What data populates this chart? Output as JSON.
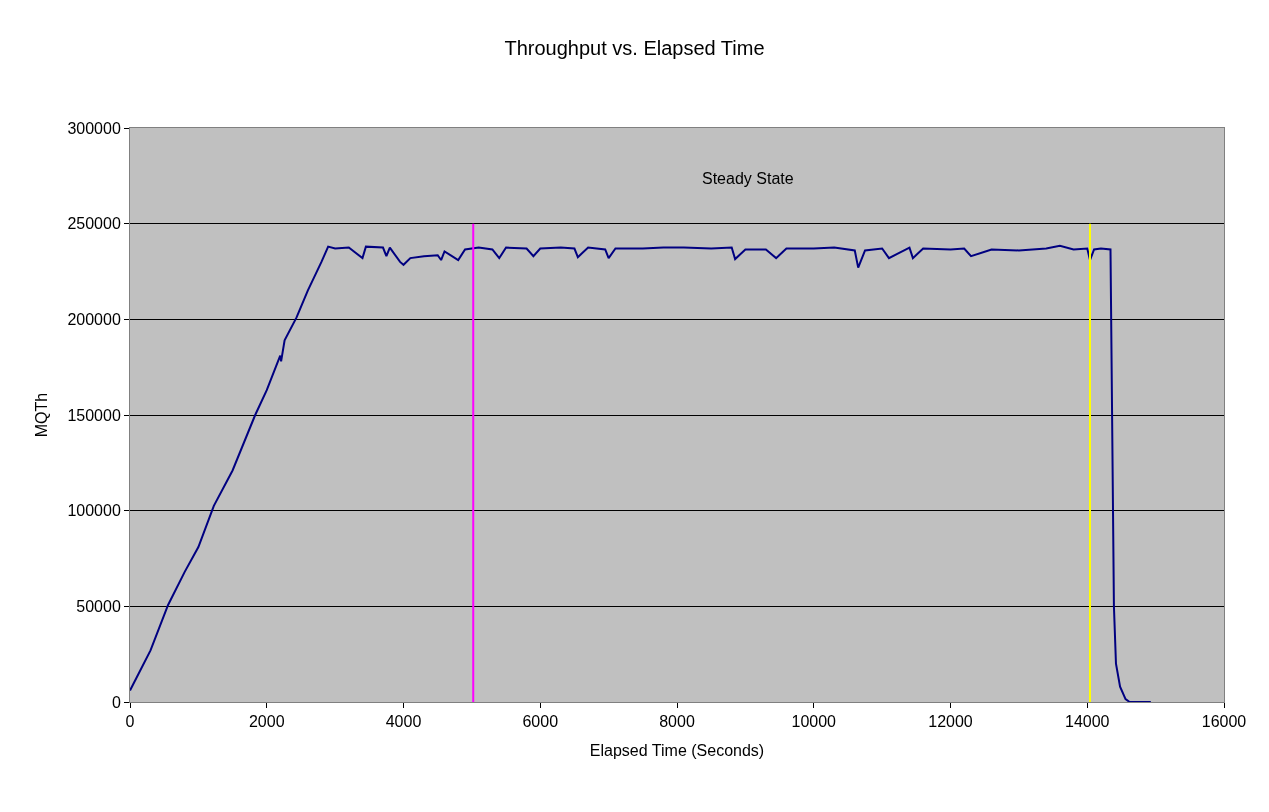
{
  "chart_data": {
    "type": "line",
    "title": "Throughput vs. Elapsed Time",
    "xlabel": "Elapsed Time (Seconds)",
    "ylabel": "MQTh",
    "annotations": [
      "Steady State"
    ],
    "xlim": [
      0,
      16000
    ],
    "xticks": [
      0,
      2000,
      4000,
      6000,
      8000,
      10000,
      12000,
      14000,
      16000
    ],
    "ylim": [
      0,
      300000
    ],
    "yticks": [
      0,
      50000,
      100000,
      150000,
      200000,
      250000,
      300000
    ],
    "grid": "y",
    "marker": "none",
    "line_style": "solid",
    "series": [
      {
        "color": "#000080",
        "x": [
          0,
          300,
          557,
          800,
          1000,
          1226,
          1500,
          1831,
          2000,
          2197,
          2210,
          2261,
          2436,
          2600,
          2800,
          2898,
          3000,
          3200,
          3400,
          3450,
          3700,
          3750,
          3800,
          3950,
          4000,
          4100,
          4300,
          4500,
          4550,
          4600,
          4800,
          4900,
          5100,
          5300,
          5400,
          5500,
          5800,
          5900,
          6000,
          6300,
          6500,
          6550,
          6700,
          6950,
          7000,
          7100,
          7500,
          7800,
          8100,
          8500,
          8800,
          8850,
          9000,
          9300,
          9450,
          9600,
          10000,
          10300,
          10600,
          10650,
          10750,
          11000,
          11100,
          11400,
          11450,
          11600,
          12000,
          12200,
          12300,
          12600,
          13000,
          13400,
          13600,
          13800,
          14000,
          14040,
          14100,
          14200,
          14340,
          14390,
          14420,
          14480,
          14560,
          14620,
          14930
        ],
        "values": [
          6000,
          27000,
          50700,
          68000,
          81000,
          102500,
          121000,
          150000,
          163000,
          181000,
          178000,
          189000,
          201000,
          215000,
          230000,
          238000,
          237000,
          237500,
          232000,
          238000,
          237500,
          233000,
          237500,
          230000,
          228500,
          232000,
          233000,
          233500,
          231000,
          235500,
          231000,
          236500,
          237500,
          236500,
          232000,
          237500,
          237000,
          233000,
          237000,
          237500,
          237000,
          232500,
          237500,
          236500,
          232000,
          237000,
          237000,
          237500,
          237500,
          237000,
          237500,
          231500,
          236500,
          236500,
          232000,
          237000,
          237000,
          237500,
          236000,
          227000,
          236000,
          237000,
          232000,
          237500,
          232000,
          237000,
          236500,
          237000,
          233000,
          236500,
          236000,
          237000,
          238500,
          236500,
          237000,
          231000,
          236500,
          237000,
          236500,
          50000,
          20000,
          8000,
          1500,
          0,
          0
        ]
      },
      {
        "color": "#ff00ff",
        "x": [
          5020,
          5020
        ],
        "values": [
          0,
          250000
        ]
      },
      {
        "color": "#ffff00",
        "x": [
          14040,
          14040
        ],
        "values": [
          0,
          250000
        ]
      }
    ]
  }
}
